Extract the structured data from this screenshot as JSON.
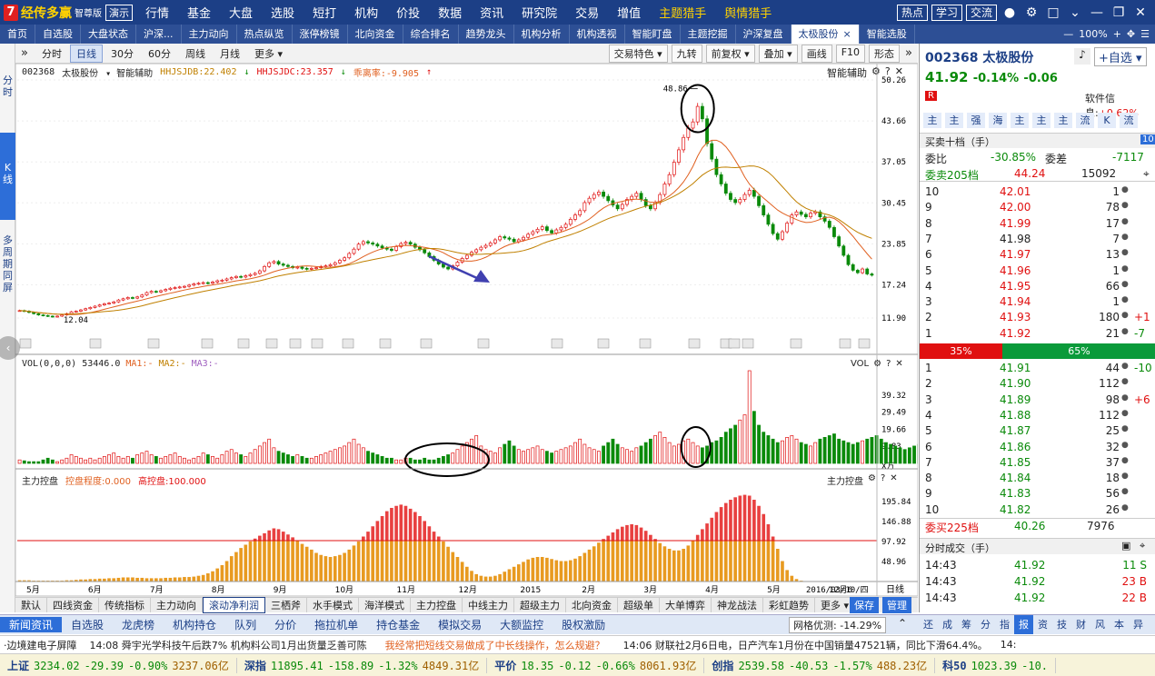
{
  "app": {
    "logo_badge": "7",
    "name": "经传多赢",
    "edition": "智尊版",
    "demo": "演示"
  },
  "top_menu": [
    {
      "label": "行情"
    },
    {
      "label": "基金"
    },
    {
      "label": "大盘"
    },
    {
      "label": "选股"
    },
    {
      "label": "短打"
    },
    {
      "label": "机构"
    },
    {
      "label": "价投"
    },
    {
      "label": "数据"
    },
    {
      "label": "资讯"
    },
    {
      "label": "研究院"
    },
    {
      "label": "交易"
    },
    {
      "label": "增值"
    },
    {
      "label": "主题猎手",
      "hl": true
    },
    {
      "label": "舆情猎手",
      "hl": true
    }
  ],
  "top_right": {
    "b1": "热点",
    "b2": "学习",
    "b3": "交流"
  },
  "tabs": [
    {
      "label": "首页"
    },
    {
      "label": "自选股"
    },
    {
      "label": "大盘状态"
    },
    {
      "label": "沪深..."
    },
    {
      "label": "主力动向"
    },
    {
      "label": "热点纵览"
    },
    {
      "label": "涨停榜镜"
    },
    {
      "label": "北向资金"
    },
    {
      "label": "综合排名"
    },
    {
      "label": "趋势龙头"
    },
    {
      "label": "机构分析"
    },
    {
      "label": "机构透视"
    },
    {
      "label": "智能盯盘"
    },
    {
      "label": "主题挖掘"
    },
    {
      "label": "沪深复盘"
    },
    {
      "label": "太极股份",
      "active": true
    },
    {
      "label": "智能选股"
    }
  ],
  "tab_right": {
    "zoom": "100%"
  },
  "left_strip": {
    "t1": "分时",
    "t2": "K线",
    "t3": "多周期同屏"
  },
  "period_buttons": [
    {
      "label": "分时"
    },
    {
      "label": "日线",
      "active": true
    },
    {
      "label": "30分"
    },
    {
      "label": "60分"
    },
    {
      "label": "周线"
    },
    {
      "label": "月线"
    },
    {
      "label": "更多 ▾"
    }
  ],
  "toolbar_right": [
    {
      "label": "交易特色 ▾"
    },
    {
      "label": "九转"
    },
    {
      "label": "前复权 ▾"
    },
    {
      "label": "叠加 ▾"
    },
    {
      "label": "画线"
    },
    {
      "label": "F10"
    },
    {
      "label": "形态"
    }
  ],
  "chart_info": {
    "code": "002368",
    "name": "太极股份",
    "assist": "智能辅助",
    "jdb": "HHJSJDB:22.402",
    "jdc": "HHJSJDC:23.357",
    "rate": "乖离率:-9.905",
    "assist_right": "智能辅助"
  },
  "vol_info": {
    "label": "VOL(0,0,0)",
    "val": "53446.0",
    "ma1": "MA1:-",
    "ma2": "MA2:-",
    "ma3": "MA3:-",
    "right": "VOL"
  },
  "ctrl_info": {
    "label": "主力控盘",
    "degree": "控盘程度:0.000",
    "high": "高控盘:100.000",
    "right": "主力控盘"
  },
  "chart_data": [
    {
      "type": "candlestick",
      "y_ticks": [
        "50.26",
        "43.66",
        "37.05",
        "30.45",
        "23.85",
        "17.24",
        "11.90"
      ],
      "ylim": [
        11.9,
        50.26
      ],
      "annotations": {
        "high": "48.86",
        "low": "12.04"
      },
      "close": [
        13.1,
        13.0,
        12.8,
        12.6,
        12.4,
        12.3,
        12.2,
        12.1,
        12.2,
        12.4,
        12.6,
        12.9,
        13.0,
        13.2,
        13.4,
        13.6,
        13.8,
        14.0,
        14.2,
        14.3,
        14.5,
        14.8,
        15.0,
        15.2,
        15.1,
        15.3,
        15.6,
        16.0,
        16.2,
        16.1,
        16.3,
        16.5,
        16.7,
        16.8,
        16.9,
        17.0,
        17.2,
        17.4,
        17.5,
        17.6,
        17.5,
        17.7,
        17.9,
        18.0,
        18.2,
        18.4,
        18.6,
        18.5,
        18.7,
        18.9,
        19.1,
        19.5,
        20.2,
        20.8,
        21.0,
        20.6,
        20.4,
        20.2,
        20.0,
        20.1,
        19.9,
        19.8,
        19.9,
        20.0,
        20.2,
        20.3,
        20.5,
        20.8,
        21.2,
        21.6,
        22.3,
        23.0,
        23.8,
        24.2,
        24.0,
        23.8,
        23.5,
        23.2,
        23.0,
        22.8,
        23.4,
        23.9,
        24.1,
        23.8,
        23.3,
        22.9,
        22.4,
        21.8,
        21.2,
        20.6,
        20.1,
        19.8,
        20.3,
        20.9,
        21.5,
        22.0,
        22.5,
        22.9,
        23.3,
        23.6,
        24.0,
        24.5,
        25.0,
        24.8,
        24.6,
        24.2,
        24.5,
        24.9,
        25.4,
        25.8,
        26.2,
        26.6,
        26.0,
        25.6,
        26.1,
        26.5,
        27.0,
        27.8,
        28.5,
        29.2,
        30.5,
        31.2,
        31.8,
        32.2,
        31.5,
        30.8,
        30.1,
        29.5,
        30.2,
        31.0,
        31.5,
        32.0,
        31.0,
        30.0,
        29.5,
        30.5,
        31.8,
        33.5,
        35.0,
        37.0,
        39.0,
        41.0,
        42.5,
        43.5,
        46.0,
        44.0,
        40.0,
        37.5,
        35.0,
        33.5,
        32.0,
        31.0,
        30.5,
        31.0,
        31.8,
        32.5,
        31.5,
        30.0,
        28.5,
        27.0,
        25.5,
        24.6,
        25.8,
        27.2,
        28.5,
        29.0,
        28.6,
        28.2,
        28.8,
        29.0,
        28.2,
        27.5,
        26.5,
        25.0,
        23.5,
        22.0,
        20.5,
        19.6,
        19.2,
        19.8,
        19.0,
        18.8
      ]
    },
    {
      "type": "bar",
      "name": "VOL",
      "y_ticks": [
        "39.32",
        "29.49",
        "19.66",
        "9.83",
        "X万"
      ],
      "ylim": [
        0,
        53.4
      ],
      "values": [
        2,
        1.5,
        1,
        1,
        1,
        2,
        3,
        2,
        1,
        2,
        3,
        5,
        4,
        3,
        2,
        3,
        2,
        3,
        4,
        5,
        6,
        4,
        3,
        4,
        3,
        5,
        6,
        7,
        5,
        4,
        3,
        4,
        5,
        6,
        4,
        3,
        2,
        3,
        4,
        6,
        5,
        4,
        3,
        5,
        7,
        8,
        6,
        5,
        4,
        6,
        8,
        10,
        12,
        14,
        9,
        7,
        6,
        5,
        4,
        5,
        4,
        3,
        3,
        4,
        5,
        6,
        7,
        8,
        9,
        10,
        12,
        14,
        11,
        9,
        7,
        6,
        5,
        4,
        3,
        3,
        2,
        2,
        3,
        3,
        2,
        2,
        3,
        2,
        2,
        3,
        4,
        5,
        6,
        8,
        10,
        12,
        14,
        16,
        10,
        8,
        7,
        6,
        9,
        11,
        13,
        10,
        8,
        7,
        8,
        9,
        10,
        8,
        7,
        6,
        7,
        8,
        9,
        10,
        12,
        14,
        11,
        9,
        8,
        7,
        10,
        12,
        14,
        11,
        9,
        8,
        7,
        9,
        10,
        12,
        14,
        16,
        18,
        15,
        12,
        10,
        11,
        13,
        14,
        12,
        10,
        9,
        10,
        12,
        13,
        15,
        18,
        20,
        22,
        25,
        28,
        53.4,
        30,
        22,
        18,
        16,
        14,
        12,
        13,
        15,
        16,
        14,
        12,
        11,
        10,
        12,
        14,
        15,
        16,
        17,
        14,
        13,
        12,
        11,
        12,
        13,
        14,
        15,
        16,
        14,
        12,
        11,
        10,
        9,
        8,
        9,
        10,
        11,
        9
      ]
    },
    {
      "type": "bar",
      "name": "主力控盘",
      "y_ticks": [
        "195.84",
        "146.88",
        "97.92",
        "48.96"
      ],
      "ylim": [
        0,
        240
      ],
      "values": [
        3,
        3,
        3,
        2,
        2,
        2,
        2,
        2,
        2,
        2,
        3,
        3,
        4,
        5,
        5,
        6,
        6,
        7,
        7,
        8,
        8,
        9,
        10,
        10,
        10,
        9,
        9,
        8,
        8,
        8,
        8,
        9,
        9,
        10,
        10,
        11,
        11,
        12,
        14,
        16,
        20,
        25,
        32,
        40,
        50,
        62,
        72,
        82,
        90,
        98,
        105,
        112,
        118,
        125,
        130,
        128,
        122,
        115,
        108,
        100,
        92,
        85,
        78,
        70,
        65,
        62,
        60,
        62,
        65,
        70,
        78,
        88,
        98,
        110,
        122,
        135,
        148,
        160,
        172,
        180,
        185,
        188,
        185,
        178,
        170,
        160,
        148,
        135,
        122,
        110,
        98,
        85,
        72,
        60,
        48,
        36,
        26,
        18,
        14,
        12,
        12,
        14,
        18,
        24,
        30,
        36,
        42,
        48,
        54,
        58,
        60,
        60,
        58,
        55,
        52,
        50,
        50,
        52,
        56,
        62,
        70,
        78,
        86,
        95,
        104,
        112,
        120,
        128,
        134,
        138,
        140,
        138,
        132,
        124,
        114,
        104,
        94,
        86,
        80,
        76,
        76,
        80,
        88,
        100,
        114,
        128,
        142,
        156,
        170,
        182,
        192,
        200,
        206,
        210,
        212,
        210,
        200,
        185,
        165,
        140,
        110,
        80,
        50,
        28,
        14,
        6,
        2,
        0,
        0,
        0,
        0,
        0,
        0,
        0,
        0,
        0,
        0,
        0,
        0,
        0,
        0,
        0,
        0,
        0,
        0,
        0,
        0,
        0,
        0,
        0,
        0,
        0
      ]
    }
  ],
  "x_axis": [
    {
      "label": "5月"
    },
    {
      "label": "6月"
    },
    {
      "label": "7月"
    },
    {
      "label": "8月"
    },
    {
      "label": "9月"
    },
    {
      "label": "10月"
    },
    {
      "label": "11月"
    },
    {
      "label": "12月"
    },
    {
      "label": "2015"
    },
    {
      "label": "2月"
    },
    {
      "label": "3月"
    },
    {
      "label": "4月"
    },
    {
      "label": "5月"
    },
    {
      "label": "12月6"
    }
  ],
  "x_axis_date": "2016/03/10/四",
  "x_axis_period": "日线",
  "indicator_tabs": [
    {
      "label": "默认"
    },
    {
      "label": "四线资金"
    },
    {
      "label": "传统指标"
    },
    {
      "label": "主力动向"
    },
    {
      "label": "滚动净利润",
      "active": true
    },
    {
      "label": "三栖斧"
    },
    {
      "label": "水手模式"
    },
    {
      "label": "海洋模式"
    },
    {
      "label": "主力控盘"
    },
    {
      "label": "中线主力"
    },
    {
      "label": "超级主力"
    },
    {
      "label": "北向资金"
    },
    {
      "label": "超级单"
    },
    {
      "label": "大单博弈"
    },
    {
      "label": "神龙战法"
    },
    {
      "label": "彩虹趋势"
    },
    {
      "label": "更多 ▾"
    }
  ],
  "indicator_right": {
    "save": "保存",
    "manage": "管理"
  },
  "quote": {
    "code": "002368",
    "name": "太极股份",
    "price": "41.92",
    "pct": "-0.14%",
    "chg": "-0.06",
    "soft_label": "软件信息:",
    "soft_val": "+0.62%",
    "r_badge": "R",
    "tags": [
      {
        "label": "主"
      },
      {
        "label": "主"
      },
      {
        "label": "强"
      },
      {
        "label": "海"
      },
      {
        "label": "主"
      },
      {
        "label": "主"
      },
      {
        "label": "主"
      },
      {
        "label": "流"
      },
      {
        "label": "K"
      },
      {
        "label": "流"
      }
    ],
    "book_title": "买卖十档（手）",
    "book_badge": "10",
    "wb_label": "委比",
    "wb_val": "-30.85%",
    "wc_label": "委差",
    "wc_val": "-7117",
    "sell_total_label": "委卖205档",
    "sell_total_price": "44.24",
    "sell_total_vol": "15092",
    "asks": [
      {
        "n": "10",
        "p": "42.01",
        "v": "1"
      },
      {
        "n": "9",
        "p": "42.00",
        "v": "78"
      },
      {
        "n": "8",
        "p": "41.99",
        "v": "17"
      },
      {
        "n": "7",
        "p": "41.98",
        "v": "7"
      },
      {
        "n": "6",
        "p": "41.97",
        "v": "13"
      },
      {
        "n": "5",
        "p": "41.96",
        "v": "1"
      },
      {
        "n": "4",
        "p": "41.95",
        "v": "66"
      },
      {
        "n": "3",
        "p": "41.94",
        "v": "1"
      },
      {
        "n": "2",
        "p": "41.93",
        "v": "180",
        "d": "+1"
      },
      {
        "n": "1",
        "p": "41.92",
        "v": "21",
        "d": "-7"
      }
    ],
    "ratio_red": "35%",
    "ratio_green": "65%",
    "ratio_red_frac": 0.35,
    "bids": [
      {
        "n": "1",
        "p": "41.91",
        "v": "44",
        "d": "-10"
      },
      {
        "n": "2",
        "p": "41.90",
        "v": "112"
      },
      {
        "n": "3",
        "p": "41.89",
        "v": "98",
        "d": "+6"
      },
      {
        "n": "4",
        "p": "41.88",
        "v": "112"
      },
      {
        "n": "5",
        "p": "41.87",
        "v": "25"
      },
      {
        "n": "6",
        "p": "41.86",
        "v": "32"
      },
      {
        "n": "7",
        "p": "41.85",
        "v": "37"
      },
      {
        "n": "8",
        "p": "41.84",
        "v": "18"
      },
      {
        "n": "9",
        "p": "41.83",
        "v": "56"
      },
      {
        "n": "10",
        "p": "41.82",
        "v": "26"
      }
    ],
    "buy_total_label": "委买225档",
    "buy_total_price": "40.26",
    "buy_total_vol": "7976",
    "trades_title": "分时成交（手）",
    "trades": [
      {
        "t": "14:43",
        "p": "41.92",
        "v": "11 S"
      },
      {
        "t": "14:43",
        "p": "41.92",
        "v": "23 B"
      },
      {
        "t": "14:43",
        "p": "41.92",
        "v": "22 B"
      }
    ]
  },
  "news_tabs": [
    {
      "label": "新闻资讯",
      "active": true
    },
    {
      "label": "自选股"
    },
    {
      "label": "龙虎榜"
    },
    {
      "label": "机构持仓"
    },
    {
      "label": "队列"
    },
    {
      "label": "分价"
    },
    {
      "label": "拖拉机单"
    },
    {
      "label": "持仓基金"
    },
    {
      "label": "模拟交易"
    },
    {
      "label": "大额监控"
    },
    {
      "label": "股权激励"
    }
  ],
  "news_right": {
    "label": "网格优测:",
    "val": "-14.29%"
  },
  "right_tabs": [
    {
      "label": "还"
    },
    {
      "label": "成"
    },
    {
      "label": "筹"
    },
    {
      "label": "分"
    },
    {
      "label": "指"
    },
    {
      "label": "报",
      "active": true
    },
    {
      "label": "资"
    },
    {
      "label": "技"
    },
    {
      "label": "财"
    },
    {
      "label": "风"
    },
    {
      "label": "本"
    },
    {
      "label": "异"
    }
  ],
  "ticker": {
    "t1": "·边境建电子屏障",
    "t2": "14:08  舜宇光学科技午后跌7%  机构料公司1月出货量乏善可陈",
    "t3": "我经常把短线交易做成了中长线操作，怎么规避？",
    "t4": "14:06  财联社2月6日电，日产汽车1月份在中国销量47521辆，同比下滑64.4%。",
    "t5": "14:"
  },
  "indexes": [
    {
      "name": "上证",
      "val": "3234.02",
      "chg": "-29.39",
      "pct": "-0.90%",
      "amt": "3237.06亿"
    },
    {
      "name": "深指",
      "val": "11895.41",
      "chg": "-158.89",
      "pct": "-1.32%",
      "amt": "4849.31亿"
    },
    {
      "name": "平价",
      "val": "18.35",
      "chg": "-0.12",
      "pct": "-0.66%",
      "amt": "8061.93亿"
    },
    {
      "name": "创指",
      "val": "2539.58",
      "chg": "-40.53",
      "pct": "-1.57%",
      "amt": "488.23亿"
    },
    {
      "name": "科50",
      "val": "1023.39",
      "chg": "-10.",
      "pct": "",
      "amt": ""
    }
  ],
  "colors": {
    "up": "#e01010",
    "down": "#0a8a0a",
    "brand": "#1c3f86",
    "ma1": "#e06020",
    "ma2": "#c08000"
  }
}
